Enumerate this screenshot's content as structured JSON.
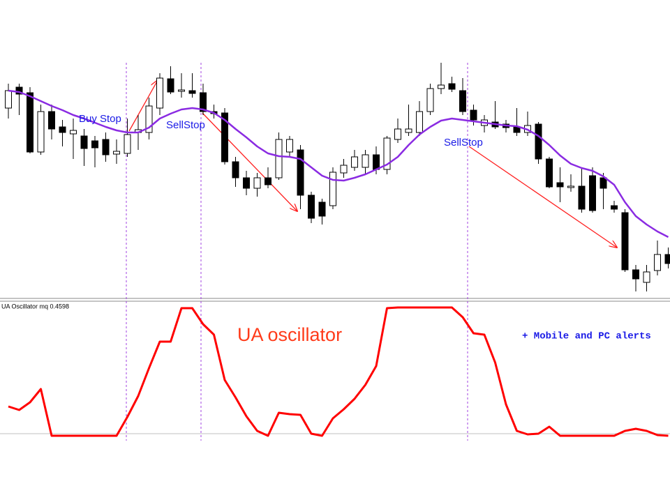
{
  "chart_data": [
    {
      "type": "candlestick",
      "ylim": [
        0,
        430
      ],
      "up_color": "#ffffff",
      "down_color": "#000000",
      "open": [
        275,
        305,
        297,
        212,
        270,
        248,
        238,
        235,
        228,
        230,
        209,
        210,
        240,
        240,
        275,
        317,
        299,
        300,
        297,
        270,
        268,
        198,
        175,
        160,
        175,
        175,
        212,
        215,
        150,
        140,
        135,
        182,
        190,
        190,
        208,
        187,
        230,
        240,
        240,
        270,
        303,
        310,
        300,
        272,
        250,
        255,
        252,
        248,
        240,
        252,
        202,
        168,
        161,
        163,
        178,
        175,
        135,
        125,
        43,
        25,
        42,
        65
      ],
      "high": [
        310,
        310,
        305,
        280,
        280,
        258,
        260,
        245,
        235,
        240,
        230,
        260,
        265,
        290,
        325,
        335,
        325,
        325,
        310,
        280,
        275,
        205,
        185,
        182,
        190,
        240,
        235,
        222,
        155,
        145,
        190,
        202,
        215,
        215,
        220,
        235,
        260,
        280,
        285,
        310,
        340,
        320,
        318,
        280,
        265,
        285,
        258,
        275,
        270,
        255,
        205,
        190,
        180,
        190,
        190,
        182,
        142,
        130,
        50,
        50,
        85,
        75
      ],
      "low": [
        260,
        265,
        210,
        208,
        230,
        220,
        202,
        192,
        190,
        198,
        195,
        205,
        215,
        230,
        265,
        295,
        290,
        290,
        265,
        260,
        194,
        162,
        150,
        148,
        160,
        172,
        205,
        130,
        110,
        108,
        130,
        175,
        185,
        180,
        180,
        180,
        225,
        235,
        235,
        265,
        295,
        298,
        265,
        250,
        240,
        245,
        240,
        235,
        235,
        195,
        160,
        140,
        155,
        125,
        125,
        130,
        125,
        40,
        12,
        12,
        35,
        45
      ],
      "close": [
        300,
        295,
        212,
        270,
        245,
        240,
        243,
        217,
        218,
        208,
        213,
        237,
        244,
        278,
        318,
        298,
        301,
        296,
        270,
        267,
        198,
        175,
        160,
        175,
        165,
        230,
        230,
        150,
        117,
        120,
        183,
        193,
        205,
        208,
        187,
        232,
        245,
        245,
        270,
        303,
        308,
        302,
        270,
        258,
        258,
        248,
        247,
        240,
        250,
        202,
        162,
        162,
        163,
        130,
        128,
        160,
        130,
        43,
        30,
        40,
        65,
        52
      ],
      "line": {
        "color": "#8a2be2",
        "values": [
          300,
          298,
          292,
          285,
          278,
          272,
          265,
          260,
          254,
          248,
          243,
          240,
          240,
          247,
          260,
          267,
          273,
          275,
          273,
          268,
          258,
          245,
          233,
          220,
          210,
          206,
          205,
          202,
          190,
          178,
          172,
          171,
          175,
          180,
          187,
          194,
          205,
          222,
          237,
          248,
          257,
          260,
          258,
          256,
          254,
          252,
          250,
          249,
          244,
          235,
          222,
          207,
          195,
          189,
          185,
          177,
          165,
          140,
          120,
          108,
          98,
          90
        ]
      },
      "annotations": [
        "Buy Stop",
        "SellStop",
        "SellStop"
      ]
    },
    {
      "type": "line",
      "title": "UA Oscillator mq 0.4598",
      "color": "#ff0000",
      "ylim": [
        0,
        190
      ],
      "values": [
        42,
        37,
        48,
        67,
        0,
        0,
        0,
        0,
        0,
        0,
        0,
        27,
        57,
        97,
        135,
        135,
        183,
        183,
        160,
        145,
        80,
        55,
        28,
        7,
        0,
        33,
        31,
        30,
        3,
        0,
        25,
        38,
        53,
        73,
        100,
        183,
        184,
        184,
        184,
        184,
        184,
        184,
        170,
        147,
        145,
        105,
        45,
        7,
        2,
        3,
        13,
        0,
        0,
        0,
        0,
        0,
        0,
        7,
        10,
        7,
        1,
        0
      ],
      "annotations": [
        "UA oscillator",
        "+ Mobile and PC alerts"
      ]
    }
  ]
}
